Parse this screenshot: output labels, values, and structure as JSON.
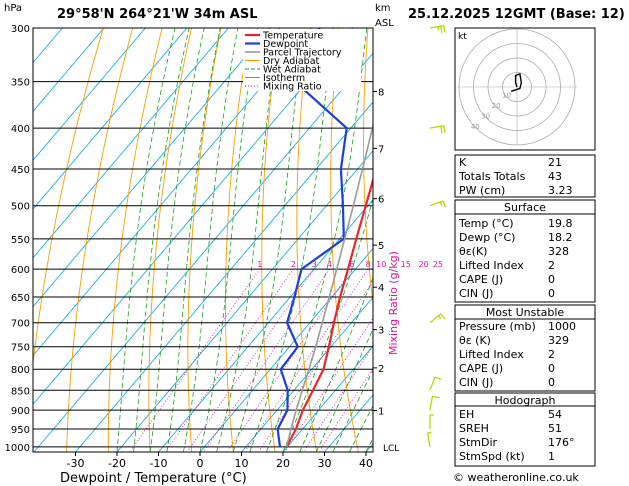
{
  "header": {
    "hpa_unit": "hPa",
    "location": "29°58'N  264°21'W  34m  ASL",
    "km_unit": "km",
    "asl_unit": "ASL",
    "datetime": "25.12.2025  12GMT  (Base: 12)"
  },
  "chart_data": {
    "type": "skew-t",
    "pressure_levels": [
      300,
      350,
      400,
      450,
      500,
      550,
      600,
      650,
      700,
      750,
      800,
      850,
      900,
      950,
      1000
    ],
    "x_ticks": [
      -30,
      -20,
      -10,
      0,
      10,
      20,
      30,
      40
    ],
    "xlabel": "Dewpoint / Temperature (°C)",
    "ylabel_right": "Mixing Ratio (g/kg)",
    "km_ticks": [
      {
        "label": "8",
        "p": 360
      },
      {
        "label": "7",
        "p": 424
      },
      {
        "label": "6",
        "p": 490
      },
      {
        "label": "5",
        "p": 560
      },
      {
        "label": "4",
        "p": 632
      },
      {
        "label": "3",
        "p": 714
      },
      {
        "label": "2",
        "p": 797
      },
      {
        "label": "1",
        "p": 901
      }
    ],
    "lcl": {
      "label": "LCL",
      "p": 1000
    },
    "mixing_ratio_labels": [
      "1",
      "2",
      "3",
      "4",
      "6",
      "8",
      "10",
      "15",
      "20",
      "25"
    ],
    "mixing_ratio_values": [
      1,
      2,
      3,
      4,
      6,
      8,
      10,
      15,
      20,
      25
    ],
    "legend": [
      "Temperature",
      "Dewpoint",
      "Parcel Trajectory",
      "Dry Adiabat",
      "Wet Adiabat",
      "Isotherm",
      "Mixing Ratio"
    ],
    "series": [
      {
        "name": "Temperature",
        "color": "#e8262b",
        "points": [
          [
            1000,
            19.8
          ],
          [
            950,
            18.4
          ],
          [
            900,
            16.2
          ],
          [
            850,
            14.6
          ],
          [
            800,
            12.8
          ],
          [
            750,
            9.5
          ],
          [
            700,
            5.8
          ],
          [
            650,
            2.0
          ],
          [
            600,
            -1.8
          ],
          [
            550,
            -6.0
          ],
          [
            500,
            -10.5
          ],
          [
            450,
            -15.5
          ],
          [
            400,
            -21.5
          ],
          [
            350,
            -28.0
          ],
          [
            300,
            -35.5
          ]
        ]
      },
      {
        "name": "Dewpoint",
        "color": "#1c3fd9",
        "points": [
          [
            1000,
            18.2
          ],
          [
            950,
            14.0
          ],
          [
            900,
            12.5
          ],
          [
            850,
            8.5
          ],
          [
            800,
            2.5
          ],
          [
            750,
            2.0
          ],
          [
            700,
            -5.5
          ],
          [
            650,
            -9.0
          ],
          [
            600,
            -13.0
          ],
          [
            550,
            -9.0
          ],
          [
            500,
            -16.0
          ],
          [
            450,
            -24.0
          ],
          [
            400,
            -31.0
          ],
          [
            350,
            -53.0
          ],
          [
            300,
            -58.0
          ]
        ]
      },
      {
        "name": "Parcel Trajectory",
        "color": "#9a9a9a",
        "points": [
          [
            1000,
            19.8
          ],
          [
            950,
            17.2
          ],
          [
            900,
            14.6
          ],
          [
            850,
            12.0
          ],
          [
            800,
            9.3
          ],
          [
            750,
            6.3
          ],
          [
            700,
            3.0
          ],
          [
            650,
            -0.6
          ],
          [
            600,
            -4.5
          ],
          [
            550,
            -8.8
          ],
          [
            500,
            -13.5
          ],
          [
            450,
            -18.8
          ],
          [
            400,
            -24.8
          ],
          [
            350,
            -31.8
          ],
          [
            300,
            -40.0
          ]
        ]
      }
    ],
    "wind_barbs": [
      {
        "p": 1000,
        "dir": 170,
        "speed": 5
      },
      {
        "p": 950,
        "dir": 180,
        "speed": 5
      },
      {
        "p": 900,
        "dir": 190,
        "speed": 10
      },
      {
        "p": 850,
        "dir": 200,
        "speed": 10
      },
      {
        "p": 700,
        "dir": 230,
        "speed": 15
      },
      {
        "p": 500,
        "dir": 250,
        "speed": 15
      },
      {
        "p": 400,
        "dir": 260,
        "speed": 20
      },
      {
        "p": 300,
        "dir": 260,
        "speed": 25
      }
    ]
  },
  "hodograph": {
    "unit": "kt",
    "ring_labels": [
      "10",
      "20",
      "30",
      "40"
    ],
    "colors": {
      "ring": "#aaaaaa",
      "trace": "#000000"
    },
    "trace": [
      [
        0,
        0
      ],
      [
        -1,
        3
      ],
      [
        -1,
        8
      ],
      [
        2,
        9
      ],
      [
        3,
        3
      ],
      [
        2,
        -1
      ],
      [
        -4,
        -3
      ]
    ]
  },
  "indices": {
    "k_label": "K",
    "k": "21",
    "tt_label": "Totals Totals",
    "tt": "43",
    "pw_label": "PW (cm)",
    "pw": "3.23"
  },
  "surface": {
    "title": "Surface",
    "temp_label": "Temp (°C)",
    "temp": "19.8",
    "dewp_label": "Dewp (°C)",
    "dewp": "18.2",
    "theta_label": "θε(K)",
    "theta": "328",
    "li_label": "Lifted Index",
    "li": "2",
    "cape_label": "CAPE (J)",
    "cape": "0",
    "cin_label": "CIN (J)",
    "cin": "0"
  },
  "unstable": {
    "title": "Most Unstable",
    "p_label": "Pressure (mb)",
    "p": "1000",
    "theta_label": "θε (K)",
    "theta": "329",
    "li_label": "Lifted Index",
    "li": "2",
    "cape_label": "CAPE (J)",
    "cape": "0",
    "cin_label": "CIN (J)",
    "cin": "0"
  },
  "hodo_table": {
    "title": "Hodograph",
    "eh_label": "EH",
    "eh": "54",
    "sreh_label": "SREH",
    "sreh": "51",
    "dir_label": "StmDir",
    "dir": "176°",
    "spd_label": "StmSpd (kt)",
    "spd": "1"
  },
  "footer": {
    "copyright": "© weatheronline.co.uk"
  },
  "colors": {
    "dry_adiabat": "#f5a000",
    "wet_adiabat": "#1aa01a",
    "isotherm": "#1ab0e0",
    "mixing_ratio": "#e0149c",
    "wind": "#b6d800"
  }
}
